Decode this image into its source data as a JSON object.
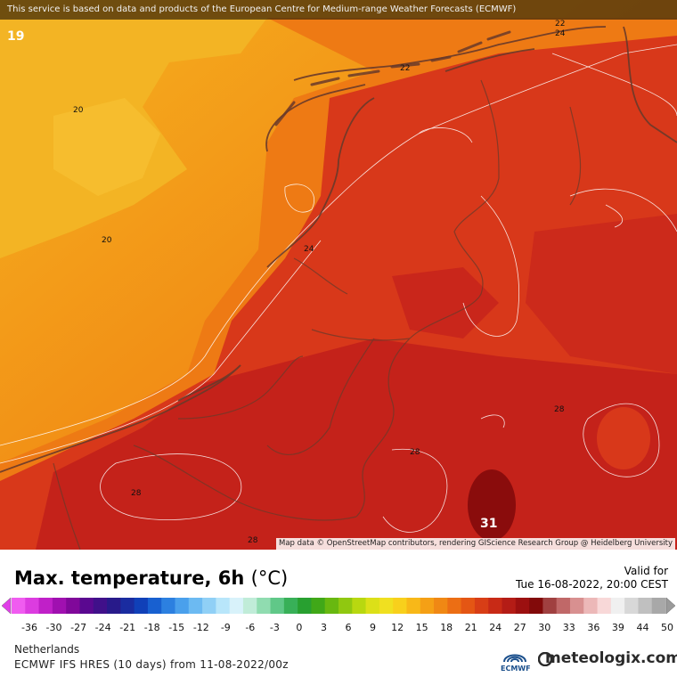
{
  "map": {
    "banner": "This service is based on data and products of the European Centre for Medium-range Weather Forecasts (ECMWF)",
    "attribution": "Map data © OpenStreetMap contributors, rendering GIScience Research Group @ Heidelberg University",
    "contour_labels": [
      "19",
      "20",
      "20",
      "22",
      "22",
      "24",
      "24",
      "28",
      "28",
      "28",
      "28",
      "31"
    ],
    "colors": {
      "sea_cool": "#f4a81c",
      "sea_mid": "#f08a12",
      "land_warm": "#d9341a",
      "land_hot": "#bf1a14",
      "peak": "#8a0c0c"
    }
  },
  "legend": {
    "title": "Max. temperature, 6h",
    "unit": "(°C)",
    "valid_label": "Valid for",
    "valid_time": "Tue 16-08-2022, 20:00 CEST",
    "ticks": [
      "-36",
      "-30",
      "-27",
      "-24",
      "-21",
      "-18",
      "-15",
      "-12",
      "-9",
      "-6",
      "-3",
      "0",
      "3",
      "6",
      "9",
      "12",
      "15",
      "18",
      "21",
      "24",
      "27",
      "30",
      "33",
      "36",
      "39",
      "44",
      "50"
    ]
  },
  "footer": {
    "region": "Netherlands",
    "model": "ECMWF IFS HRES (10 days) from 11-08-2022/00z",
    "ecmwf": "ECMWF",
    "brand": "meteologix.com"
  }
}
